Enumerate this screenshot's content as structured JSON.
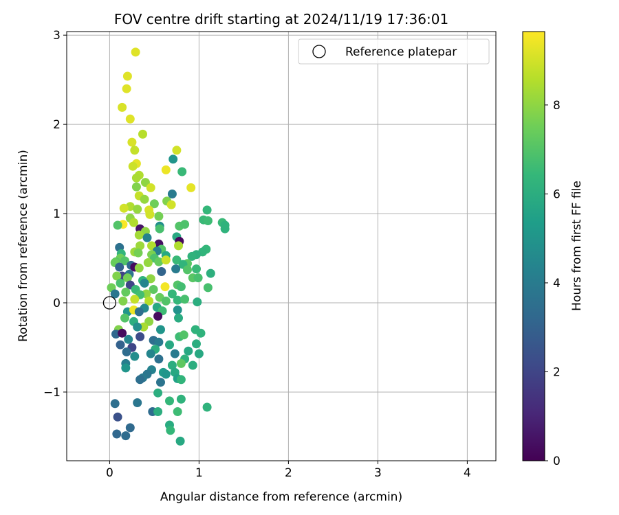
{
  "chart_data": {
    "type": "scatter",
    "title": "FOV centre drift starting at 2024/11/19 17:36:01",
    "xlabel": "Angular distance from reference (arcmin)",
    "ylabel": "Rotation from reference (arcmin)",
    "xlim": [
      -0.48,
      4.32
    ],
    "ylim": [
      -1.77,
      3.04
    ],
    "xticks": [
      "0",
      "1",
      "2",
      "3",
      "4"
    ],
    "xtick_values": [
      0,
      1,
      2,
      3,
      4
    ],
    "yticks": [
      "−1",
      "0",
      "1",
      "2",
      "3"
    ],
    "ytick_values": [
      -1,
      0,
      1,
      2,
      3
    ],
    "grid": true,
    "legend": {
      "placement": "top-right",
      "entries": [
        "Reference platepar"
      ]
    },
    "reference_point": {
      "name": "Reference platepar",
      "x": 0,
      "y": 0,
      "marker": "open-circle"
    },
    "colorbar": {
      "label": "Hours from first FF file",
      "colormap": "viridis",
      "range": [
        0,
        9.65
      ],
      "ticks": [
        "0",
        "2",
        "4",
        "6",
        "8"
      ],
      "tick_values": [
        0,
        2,
        4,
        6,
        8
      ]
    },
    "colormap_stops": [
      "#440154",
      "#482878",
      "#3e4a89",
      "#31688e",
      "#26828e",
      "#1f9e89",
      "#35b779",
      "#6ece58",
      "#b5de2b",
      "#fde725"
    ],
    "points": [
      {
        "x": 0.29,
        "y": 2.81,
        "c": 9.2
      },
      {
        "x": 0.2,
        "y": 2.54,
        "c": 9.2
      },
      {
        "x": 0.19,
        "y": 2.4,
        "c": 9.2
      },
      {
        "x": 0.14,
        "y": 2.19,
        "c": 9.1
      },
      {
        "x": 0.23,
        "y": 2.06,
        "c": 9.2
      },
      {
        "x": 0.37,
        "y": 1.89,
        "c": 8.6
      },
      {
        "x": 0.25,
        "y": 1.8,
        "c": 9.1
      },
      {
        "x": 0.28,
        "y": 1.71,
        "c": 8.8
      },
      {
        "x": 0.75,
        "y": 1.71,
        "c": 9.0
      },
      {
        "x": 0.71,
        "y": 1.61,
        "c": 5.0
      },
      {
        "x": 0.3,
        "y": 1.56,
        "c": 9.3
      },
      {
        "x": 0.26,
        "y": 1.53,
        "c": 8.9
      },
      {
        "x": 0.63,
        "y": 1.49,
        "c": 9.4
      },
      {
        "x": 0.81,
        "y": 1.47,
        "c": 6.5
      },
      {
        "x": 0.33,
        "y": 1.43,
        "c": 8.5
      },
      {
        "x": 0.3,
        "y": 1.4,
        "c": 8.4
      },
      {
        "x": 0.4,
        "y": 1.35,
        "c": 8.0
      },
      {
        "x": 0.3,
        "y": 1.3,
        "c": 7.8
      },
      {
        "x": 0.46,
        "y": 1.29,
        "c": 9.0
      },
      {
        "x": 0.91,
        "y": 1.29,
        "c": 9.3
      },
      {
        "x": 0.7,
        "y": 1.22,
        "c": 4.0
      },
      {
        "x": 0.33,
        "y": 1.2,
        "c": 8.8
      },
      {
        "x": 0.39,
        "y": 1.16,
        "c": 8.1
      },
      {
        "x": 0.64,
        "y": 1.14,
        "c": 7.8
      },
      {
        "x": 0.5,
        "y": 1.11,
        "c": 7.5
      },
      {
        "x": 0.69,
        "y": 1.1,
        "c": 9.0
      },
      {
        "x": 0.23,
        "y": 1.08,
        "c": 8.5
      },
      {
        "x": 0.16,
        "y": 1.06,
        "c": 9.0
      },
      {
        "x": 0.31,
        "y": 1.05,
        "c": 8.1
      },
      {
        "x": 0.44,
        "y": 1.04,
        "c": 9.1
      },
      {
        "x": 1.09,
        "y": 1.04,
        "c": 6.4
      },
      {
        "x": 0.45,
        "y": 0.99,
        "c": 9.0
      },
      {
        "x": 0.55,
        "y": 0.97,
        "c": 7.6
      },
      {
        "x": 0.23,
        "y": 0.95,
        "c": 8.0
      },
      {
        "x": 1.05,
        "y": 0.93,
        "c": 6.5
      },
      {
        "x": 1.1,
        "y": 0.92,
        "c": 6.6
      },
      {
        "x": 0.27,
        "y": 0.9,
        "c": 8.5
      },
      {
        "x": 1.26,
        "y": 0.9,
        "c": 6.5
      },
      {
        "x": 0.15,
        "y": 0.88,
        "c": 9.6
      },
      {
        "x": 0.09,
        "y": 0.87,
        "c": 7.0
      },
      {
        "x": 1.29,
        "y": 0.87,
        "c": 6.2
      },
      {
        "x": 0.78,
        "y": 0.86,
        "c": 7.0
      },
      {
        "x": 0.56,
        "y": 0.86,
        "c": 4.8
      },
      {
        "x": 0.84,
        "y": 0.88,
        "c": 6.9
      },
      {
        "x": 0.34,
        "y": 0.83,
        "c": 0.5
      },
      {
        "x": 1.29,
        "y": 0.83,
        "c": 6.2
      },
      {
        "x": 0.56,
        "y": 0.83,
        "c": 6.8
      },
      {
        "x": 0.4,
        "y": 0.8,
        "c": 8.0
      },
      {
        "x": 0.33,
        "y": 0.76,
        "c": 8.3
      },
      {
        "x": 0.42,
        "y": 0.73,
        "c": 4.3
      },
      {
        "x": 0.75,
        "y": 0.74,
        "c": 5.8
      },
      {
        "x": 0.78,
        "y": 0.69,
        "c": 0.2
      },
      {
        "x": 0.55,
        "y": 0.66,
        "c": 0.4
      },
      {
        "x": 0.47,
        "y": 0.64,
        "c": 8.5
      },
      {
        "x": 0.34,
        "y": 0.64,
        "c": 8.2
      },
      {
        "x": 0.77,
        "y": 0.64,
        "c": 8.5
      },
      {
        "x": 0.58,
        "y": 0.6,
        "c": 7.0
      },
      {
        "x": 0.11,
        "y": 0.62,
        "c": 3.6
      },
      {
        "x": 0.13,
        "y": 0.55,
        "c": 6.3
      },
      {
        "x": 1.08,
        "y": 0.6,
        "c": 6.4
      },
      {
        "x": 1.04,
        "y": 0.57,
        "c": 6.3
      },
      {
        "x": 0.53,
        "y": 0.58,
        "c": 4.2
      },
      {
        "x": 0.28,
        "y": 0.57,
        "c": 8.2
      },
      {
        "x": 0.32,
        "y": 0.56,
        "c": 7.6
      },
      {
        "x": 0.47,
        "y": 0.54,
        "c": 7.7
      },
      {
        "x": 0.63,
        "y": 0.53,
        "c": 5.8
      },
      {
        "x": 0.97,
        "y": 0.54,
        "c": 6.1
      },
      {
        "x": 0.92,
        "y": 0.52,
        "c": 6.2
      },
      {
        "x": 0.12,
        "y": 0.5,
        "c": 7.5
      },
      {
        "x": 0.07,
        "y": 0.46,
        "c": 7.1
      },
      {
        "x": 0.5,
        "y": 0.5,
        "c": 6.9
      },
      {
        "x": 0.55,
        "y": 0.46,
        "c": 7.3
      },
      {
        "x": 0.75,
        "y": 0.48,
        "c": 6.5
      },
      {
        "x": 0.63,
        "y": 0.48,
        "c": 8.9
      },
      {
        "x": 0.06,
        "y": 0.45,
        "c": 7.4
      },
      {
        "x": 0.17,
        "y": 0.47,
        "c": 7.0
      },
      {
        "x": 0.43,
        "y": 0.45,
        "c": 8.1
      },
      {
        "x": 0.87,
        "y": 0.44,
        "c": 7.1
      },
      {
        "x": 0.82,
        "y": 0.43,
        "c": 6.3
      },
      {
        "x": 0.24,
        "y": 0.42,
        "c": 3.2
      },
      {
        "x": 0.28,
        "y": 0.4,
        "c": 0.3
      },
      {
        "x": 0.11,
        "y": 0.4,
        "c": 3.0
      },
      {
        "x": 0.33,
        "y": 0.39,
        "c": 8.0
      },
      {
        "x": 0.74,
        "y": 0.38,
        "c": 4.0
      },
      {
        "x": 0.58,
        "y": 0.35,
        "c": 3.1
      },
      {
        "x": 0.97,
        "y": 0.38,
        "c": 6.5
      },
      {
        "x": 0.87,
        "y": 0.37,
        "c": 7.0
      },
      {
        "x": 1.13,
        "y": 0.33,
        "c": 6.1
      },
      {
        "x": 0.22,
        "y": 0.32,
        "c": 3.7
      },
      {
        "x": 0.14,
        "y": 0.3,
        "c": 1.9
      },
      {
        "x": 0.2,
        "y": 0.28,
        "c": 7.6
      },
      {
        "x": 0.08,
        "y": 0.3,
        "c": 7.8
      },
      {
        "x": 0.46,
        "y": 0.27,
        "c": 8.0
      },
      {
        "x": 0.37,
        "y": 0.25,
        "c": 6.2
      },
      {
        "x": 0.93,
        "y": 0.28,
        "c": 7.1
      },
      {
        "x": 0.99,
        "y": 0.28,
        "c": 6.8
      },
      {
        "x": 0.23,
        "y": 0.2,
        "c": 2.0
      },
      {
        "x": 0.12,
        "y": 0.22,
        "c": 6.8
      },
      {
        "x": 0.39,
        "y": 0.22,
        "c": 4.4
      },
      {
        "x": 0.76,
        "y": 0.2,
        "c": 7.0
      },
      {
        "x": 0.8,
        "y": 0.18,
        "c": 6.7
      },
      {
        "x": 0.62,
        "y": 0.18,
        "c": 9.5
      },
      {
        "x": 0.02,
        "y": 0.17,
        "c": 7.5
      },
      {
        "x": 0.29,
        "y": 0.15,
        "c": 6.5
      },
      {
        "x": 0.49,
        "y": 0.15,
        "c": 7.2
      },
      {
        "x": 1.1,
        "y": 0.17,
        "c": 6.8
      },
      {
        "x": 0.18,
        "y": 0.12,
        "c": 7.3
      },
      {
        "x": 0.06,
        "y": 0.1,
        "c": 3.8
      },
      {
        "x": 0.41,
        "y": 0.1,
        "c": 8.0
      },
      {
        "x": 0.34,
        "y": 0.09,
        "c": 6.7
      },
      {
        "x": 0.7,
        "y": 0.1,
        "c": 6.4
      },
      {
        "x": 0.56,
        "y": 0.06,
        "c": 7.4
      },
      {
        "x": 0.28,
        "y": 0.04,
        "c": 8.8
      },
      {
        "x": 0.15,
        "y": 0.02,
        "c": 7.8
      },
      {
        "x": 0.44,
        "y": 0.02,
        "c": 8.6
      },
      {
        "x": 0.63,
        "y": 0.02,
        "c": 7.0
      },
      {
        "x": 0.76,
        "y": 0.03,
        "c": 6.4
      },
      {
        "x": 0.84,
        "y": 0.04,
        "c": 6.8
      },
      {
        "x": 0.98,
        "y": 0.01,
        "c": 6.0
      },
      {
        "x": 0.53,
        "y": -0.05,
        "c": 5.8
      },
      {
        "x": 0.39,
        "y": -0.06,
        "c": 4.6
      },
      {
        "x": 0.2,
        "y": -0.1,
        "c": 5.0
      },
      {
        "x": 0.27,
        "y": -0.08,
        "c": 9.4
      },
      {
        "x": 0.33,
        "y": -0.1,
        "c": 3.5
      },
      {
        "x": 0.76,
        "y": -0.08,
        "c": 4.9
      },
      {
        "x": 0.59,
        "y": -0.09,
        "c": 6.6
      },
      {
        "x": 0.54,
        "y": -0.15,
        "c": 0.3
      },
      {
        "x": 0.77,
        "y": -0.17,
        "c": 5.9
      },
      {
        "x": 0.17,
        "y": -0.17,
        "c": 7.0
      },
      {
        "x": 0.27,
        "y": -0.21,
        "c": 6.0
      },
      {
        "x": 0.44,
        "y": -0.21,
        "c": 8.0
      },
      {
        "x": 0.38,
        "y": -0.27,
        "c": 8.4
      },
      {
        "x": 0.31,
        "y": -0.27,
        "c": 4.8
      },
      {
        "x": 0.57,
        "y": -0.3,
        "c": 5.0
      },
      {
        "x": 0.96,
        "y": -0.3,
        "c": 6.2
      },
      {
        "x": 0.1,
        "y": -0.3,
        "c": 7.8
      },
      {
        "x": 0.07,
        "y": -0.35,
        "c": 3.2
      },
      {
        "x": 0.14,
        "y": -0.34,
        "c": 0.3
      },
      {
        "x": 0.34,
        "y": -0.38,
        "c": 2.2
      },
      {
        "x": 0.78,
        "y": -0.38,
        "c": 6.6
      },
      {
        "x": 0.83,
        "y": -0.36,
        "c": 7.0
      },
      {
        "x": 1.02,
        "y": -0.34,
        "c": 6.2
      },
      {
        "x": 0.21,
        "y": -0.41,
        "c": 4.4
      },
      {
        "x": 0.49,
        "y": -0.42,
        "c": 3.5
      },
      {
        "x": 0.55,
        "y": -0.44,
        "c": 4.0
      },
      {
        "x": 0.97,
        "y": -0.46,
        "c": 6.0
      },
      {
        "x": 0.12,
        "y": -0.47,
        "c": 3.0
      },
      {
        "x": 0.25,
        "y": -0.5,
        "c": 2.0
      },
      {
        "x": 0.67,
        "y": -0.47,
        "c": 5.8
      },
      {
        "x": 0.51,
        "y": -0.52,
        "c": 6.0
      },
      {
        "x": 0.88,
        "y": -0.54,
        "c": 5.8
      },
      {
        "x": 0.19,
        "y": -0.55,
        "c": 3.4
      },
      {
        "x": 0.46,
        "y": -0.57,
        "c": 4.4
      },
      {
        "x": 0.73,
        "y": -0.57,
        "c": 4.0
      },
      {
        "x": 1.0,
        "y": -0.57,
        "c": 5.8
      },
      {
        "x": 0.28,
        "y": -0.6,
        "c": 4.7
      },
      {
        "x": 0.55,
        "y": -0.63,
        "c": 3.6
      },
      {
        "x": 0.84,
        "y": -0.63,
        "c": 6.2
      },
      {
        "x": 0.8,
        "y": -0.68,
        "c": 7.2
      },
      {
        "x": 0.18,
        "y": -0.68,
        "c": 4.1
      },
      {
        "x": 0.7,
        "y": -0.7,
        "c": 6.0
      },
      {
        "x": 0.93,
        "y": -0.7,
        "c": 6.0
      },
      {
        "x": 0.18,
        "y": -0.73,
        "c": 5.0
      },
      {
        "x": 0.47,
        "y": -0.75,
        "c": 4.3
      },
      {
        "x": 0.6,
        "y": -0.78,
        "c": 5.2
      },
      {
        "x": 0.73,
        "y": -0.78,
        "c": 5.8
      },
      {
        "x": 0.42,
        "y": -0.8,
        "c": 3.8
      },
      {
        "x": 0.63,
        "y": -0.8,
        "c": 5.0
      },
      {
        "x": 0.37,
        "y": -0.84,
        "c": 3.9
      },
      {
        "x": 0.76,
        "y": -0.85,
        "c": 5.5
      },
      {
        "x": 0.34,
        "y": -0.86,
        "c": 3.5
      },
      {
        "x": 0.8,
        "y": -0.86,
        "c": 6.3
      },
      {
        "x": 0.57,
        "y": -0.89,
        "c": 3.7
      },
      {
        "x": 0.54,
        "y": -1.01,
        "c": 6.0
      },
      {
        "x": 0.8,
        "y": -1.08,
        "c": 6.2
      },
      {
        "x": 0.67,
        "y": -1.1,
        "c": 6.4
      },
      {
        "x": 0.06,
        "y": -1.13,
        "c": 3.5
      },
      {
        "x": 0.31,
        "y": -1.12,
        "c": 3.8
      },
      {
        "x": 1.09,
        "y": -1.17,
        "c": 6.2
      },
      {
        "x": 0.48,
        "y": -1.22,
        "c": 3.4
      },
      {
        "x": 0.54,
        "y": -1.22,
        "c": 6.0
      },
      {
        "x": 0.76,
        "y": -1.22,
        "c": 6.6
      },
      {
        "x": 0.09,
        "y": -1.28,
        "c": 2.4
      },
      {
        "x": 0.67,
        "y": -1.37,
        "c": 5.9
      },
      {
        "x": 0.23,
        "y": -1.4,
        "c": 3.3
      },
      {
        "x": 0.68,
        "y": -1.43,
        "c": 6.4
      },
      {
        "x": 0.08,
        "y": -1.47,
        "c": 3.2
      },
      {
        "x": 0.18,
        "y": -1.49,
        "c": 3.4
      },
      {
        "x": 0.79,
        "y": -1.55,
        "c": 5.8
      }
    ]
  }
}
